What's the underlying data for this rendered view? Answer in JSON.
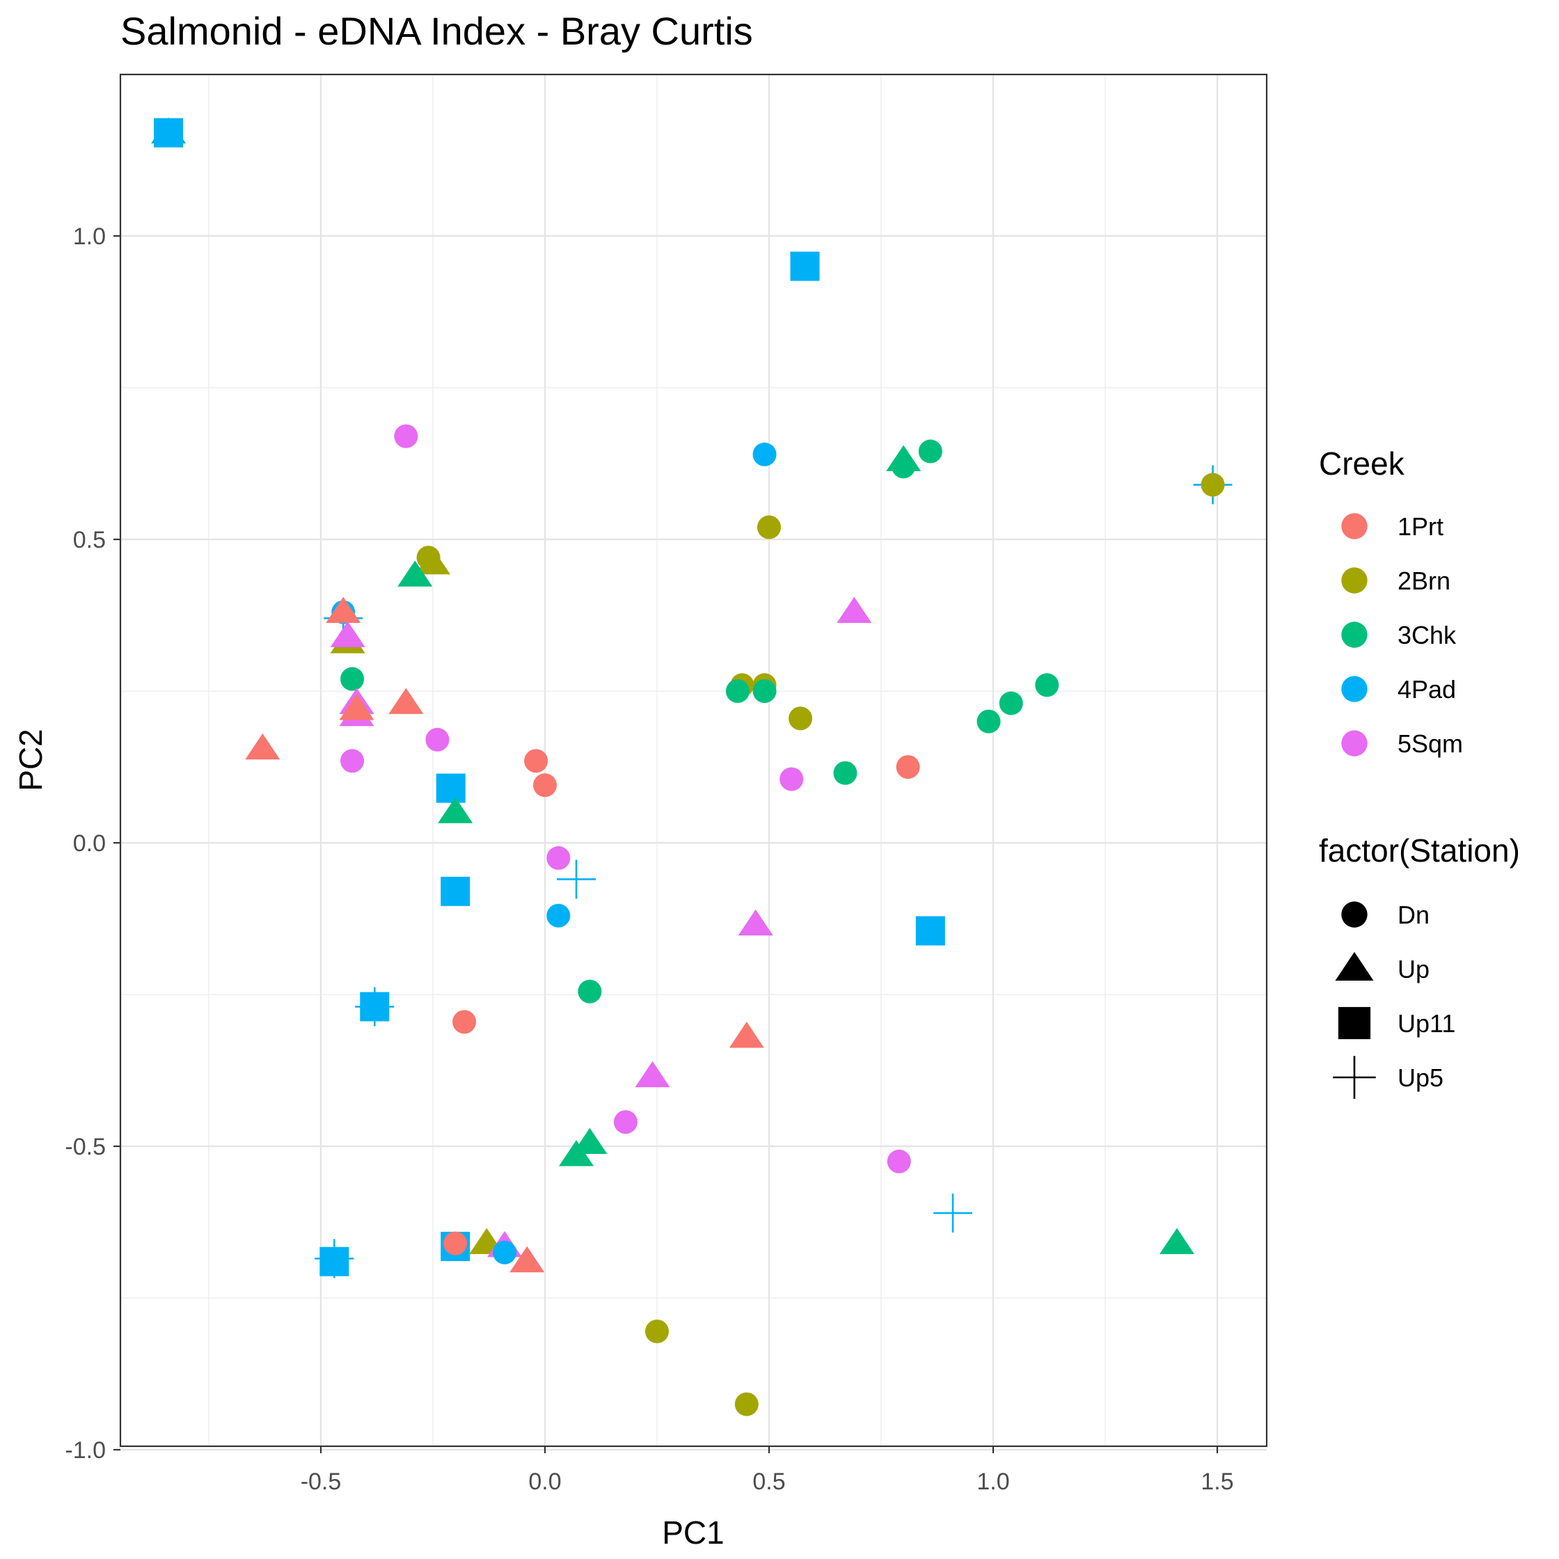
{
  "chart_data": {
    "type": "scatter",
    "title": "Salmonid - eDNA Index - Bray Curtis",
    "xlabel": "PC1",
    "ylabel": "PC2",
    "xlim": [
      -0.95,
      1.6
    ],
    "ylim": [
      -1.03,
      1.27
    ],
    "x_ticks": [
      -0.5,
      0.0,
      0.5,
      1.0,
      1.5
    ],
    "x_tick_labels": [
      "-0.5",
      "0.0",
      "0.5",
      "1.0",
      "1.5"
    ],
    "y_ticks": [
      -1.0,
      -0.5,
      0.0,
      0.5,
      1.0
    ],
    "y_tick_labels": [
      "-1.0",
      "-0.5",
      "0.0",
      "0.5",
      "1.0"
    ],
    "grid": true,
    "legend_position": "right",
    "color_legend": {
      "title": "Creek",
      "entries": [
        {
          "label": "1Prt",
          "color": "#F8766D"
        },
        {
          "label": "2Brn",
          "color": "#A3A500"
        },
        {
          "label": "3Chk",
          "color": "#00BF7D"
        },
        {
          "label": "4Pad",
          "color": "#00B0F6"
        },
        {
          "label": "5Sqm",
          "color": "#E76BF3"
        }
      ]
    },
    "shape_legend": {
      "title": "factor(Station)",
      "entries": [
        {
          "label": "Dn",
          "shape": "circle"
        },
        {
          "label": "Up",
          "shape": "triangle"
        },
        {
          "label": "Up11",
          "shape": "square"
        },
        {
          "label": "Up5",
          "shape": "plus"
        }
      ]
    },
    "points": [
      {
        "x": -0.84,
        "y": 1.17,
        "creek": "3Chk",
        "station": "Up"
      },
      {
        "x": -0.84,
        "y": 1.17,
        "creek": "4Pad",
        "station": "Up11"
      },
      {
        "x": 0.58,
        "y": 0.95,
        "creek": "4Pad",
        "station": "Up11"
      },
      {
        "x": -0.31,
        "y": 0.67,
        "creek": "5Sqm",
        "station": "Dn"
      },
      {
        "x": 0.49,
        "y": 0.64,
        "creek": "4Pad",
        "station": "Dn"
      },
      {
        "x": 0.8,
        "y": 0.62,
        "creek": "3Chk",
        "station": "Dn"
      },
      {
        "x": 0.8,
        "y": 0.63,
        "creek": "3Chk",
        "station": "Up"
      },
      {
        "x": 0.86,
        "y": 0.645,
        "creek": "3Chk",
        "station": "Dn"
      },
      {
        "x": 1.49,
        "y": 0.59,
        "creek": "4Pad",
        "station": "Up5"
      },
      {
        "x": 1.49,
        "y": 0.59,
        "creek": "2Brn",
        "station": "Dn"
      },
      {
        "x": 0.5,
        "y": 0.52,
        "creek": "2Brn",
        "station": "Dn"
      },
      {
        "x": -0.26,
        "y": 0.47,
        "creek": "2Brn",
        "station": "Dn"
      },
      {
        "x": -0.25,
        "y": 0.46,
        "creek": "2Brn",
        "station": "Up"
      },
      {
        "x": -0.29,
        "y": 0.44,
        "creek": "3Chk",
        "station": "Up"
      },
      {
        "x": -0.45,
        "y": 0.38,
        "creek": "4Pad",
        "station": "Dn"
      },
      {
        "x": -0.45,
        "y": 0.37,
        "creek": "4Pad",
        "station": "Up5"
      },
      {
        "x": -0.45,
        "y": 0.38,
        "creek": "1Prt",
        "station": "Up"
      },
      {
        "x": -0.44,
        "y": 0.33,
        "creek": "2Brn",
        "station": "Up"
      },
      {
        "x": -0.44,
        "y": 0.34,
        "creek": "5Sqm",
        "station": "Up"
      },
      {
        "x": 0.69,
        "y": 0.38,
        "creek": "5Sqm",
        "station": "Up"
      },
      {
        "x": -0.43,
        "y": 0.27,
        "creek": "3Chk",
        "station": "Dn"
      },
      {
        "x": 0.44,
        "y": 0.26,
        "creek": "2Brn",
        "station": "Dn"
      },
      {
        "x": 0.49,
        "y": 0.26,
        "creek": "2Brn",
        "station": "Dn"
      },
      {
        "x": 0.43,
        "y": 0.25,
        "creek": "3Chk",
        "station": "Dn"
      },
      {
        "x": 0.49,
        "y": 0.25,
        "creek": "3Chk",
        "station": "Dn"
      },
      {
        "x": 1.12,
        "y": 0.26,
        "creek": "3Chk",
        "station": "Dn"
      },
      {
        "x": 1.04,
        "y": 0.23,
        "creek": "3Chk",
        "station": "Dn"
      },
      {
        "x": 0.99,
        "y": 0.2,
        "creek": "3Chk",
        "station": "Dn"
      },
      {
        "x": 0.57,
        "y": 0.205,
        "creek": "2Brn",
        "station": "Dn"
      },
      {
        "x": -0.31,
        "y": 0.23,
        "creek": "1Prt",
        "station": "Up"
      },
      {
        "x": -0.42,
        "y": 0.23,
        "creek": "5Sqm",
        "station": "Up"
      },
      {
        "x": -0.42,
        "y": 0.21,
        "creek": "5Sqm",
        "station": "Up"
      },
      {
        "x": -0.42,
        "y": 0.22,
        "creek": "1Prt",
        "station": "Up"
      },
      {
        "x": -0.63,
        "y": 0.155,
        "creek": "1Prt",
        "station": "Up"
      },
      {
        "x": -0.24,
        "y": 0.17,
        "creek": "5Sqm",
        "station": "Dn"
      },
      {
        "x": -0.43,
        "y": 0.135,
        "creek": "5Sqm",
        "station": "Dn"
      },
      {
        "x": -0.02,
        "y": 0.135,
        "creek": "1Prt",
        "station": "Dn"
      },
      {
        "x": 0.0,
        "y": 0.095,
        "creek": "1Prt",
        "station": "Dn"
      },
      {
        "x": 0.81,
        "y": 0.125,
        "creek": "1Prt",
        "station": "Dn"
      },
      {
        "x": 0.67,
        "y": 0.115,
        "creek": "3Chk",
        "station": "Dn"
      },
      {
        "x": 0.55,
        "y": 0.105,
        "creek": "5Sqm",
        "station": "Dn"
      },
      {
        "x": -0.21,
        "y": 0.09,
        "creek": "4Pad",
        "station": "Up11"
      },
      {
        "x": -0.2,
        "y": 0.05,
        "creek": "3Chk",
        "station": "Up"
      },
      {
        "x": 0.03,
        "y": -0.025,
        "creek": "5Sqm",
        "station": "Dn"
      },
      {
        "x": 0.07,
        "y": -0.06,
        "creek": "4Pad",
        "station": "Up5"
      },
      {
        "x": -0.2,
        "y": -0.08,
        "creek": "4Pad",
        "station": "Up11"
      },
      {
        "x": 0.03,
        "y": -0.12,
        "creek": "4Pad",
        "station": "Dn"
      },
      {
        "x": 0.47,
        "y": -0.135,
        "creek": "5Sqm",
        "station": "Up"
      },
      {
        "x": 0.86,
        "y": -0.145,
        "creek": "4Pad",
        "station": "Up11"
      },
      {
        "x": 0.1,
        "y": -0.245,
        "creek": "3Chk",
        "station": "Dn"
      },
      {
        "x": -0.38,
        "y": -0.27,
        "creek": "4Pad",
        "station": "Up11"
      },
      {
        "x": -0.38,
        "y": -0.27,
        "creek": "4Pad",
        "station": "Up5"
      },
      {
        "x": -0.18,
        "y": -0.295,
        "creek": "1Prt",
        "station": "Dn"
      },
      {
        "x": 0.45,
        "y": -0.32,
        "creek": "1Prt",
        "station": "Up"
      },
      {
        "x": 0.24,
        "y": -0.385,
        "creek": "5Sqm",
        "station": "Up"
      },
      {
        "x": 0.18,
        "y": -0.46,
        "creek": "5Sqm",
        "station": "Dn"
      },
      {
        "x": 0.1,
        "y": -0.495,
        "creek": "3Chk",
        "station": "Up"
      },
      {
        "x": 0.07,
        "y": -0.515,
        "creek": "3Chk",
        "station": "Up"
      },
      {
        "x": 0.79,
        "y": -0.525,
        "creek": "5Sqm",
        "station": "Dn"
      },
      {
        "x": 0.91,
        "y": -0.61,
        "creek": "4Pad",
        "station": "Up5"
      },
      {
        "x": 1.41,
        "y": -0.66,
        "creek": "3Chk",
        "station": "Up"
      },
      {
        "x": -0.47,
        "y": -0.69,
        "creek": "4Pad",
        "station": "Up11"
      },
      {
        "x": -0.47,
        "y": -0.685,
        "creek": "4Pad",
        "station": "Up5"
      },
      {
        "x": -0.2,
        "y": -0.665,
        "creek": "4Pad",
        "station": "Up11"
      },
      {
        "x": -0.2,
        "y": -0.66,
        "creek": "1Prt",
        "station": "Dn"
      },
      {
        "x": -0.13,
        "y": -0.66,
        "creek": "2Brn",
        "station": "Up"
      },
      {
        "x": -0.09,
        "y": -0.665,
        "creek": "5Sqm",
        "station": "Up"
      },
      {
        "x": -0.09,
        "y": -0.675,
        "creek": "4Pad",
        "station": "Dn"
      },
      {
        "x": -0.04,
        "y": -0.69,
        "creek": "1Prt",
        "station": "Up"
      },
      {
        "x": 0.25,
        "y": -0.805,
        "creek": "2Brn",
        "station": "Dn"
      },
      {
        "x": 0.45,
        "y": -0.925,
        "creek": "2Brn",
        "station": "Dn"
      }
    ]
  }
}
